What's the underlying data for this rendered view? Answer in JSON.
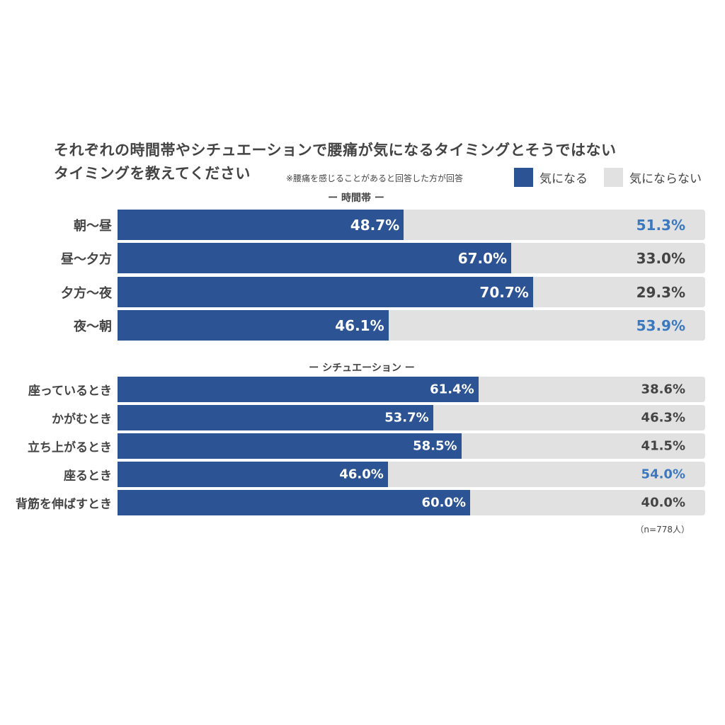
{
  "title_line1": "それぞれの時間帯やシチュエーションで腰痛が気になるタイミングとそうではない",
  "title_line2": "タイミングを教えてください",
  "note": "※腰痛を感じることがあると回答した方が回答",
  "legend": [
    {
      "label": "気になる",
      "color": "#2c5494"
    },
    {
      "label": "気にならない",
      "color": "#e1e1e1"
    }
  ],
  "colors": {
    "primary": "#2c5494",
    "rest": "#e1e1e1",
    "highlight_text": "#3a78c0",
    "normal_text": "#444444"
  },
  "sections": [
    {
      "title": "ー 時間帯 ー"
    },
    {
      "title": "ー シチュエーション ー"
    }
  ],
  "footnote": "（n=778人）",
  "chart_data": {
    "type": "bar",
    "orientation": "horizontal-stacked-100",
    "title": "それぞれの時間帯やシチュエーションで腰痛が気になるタイミングとそうではないタイミングを教えてください",
    "subtitle": "※腰痛を感じることがあると回答した方が回答",
    "legend_position": "top-right",
    "sample": "n=778人",
    "groups": [
      {
        "name": "時間帯",
        "categories": [
          "朝〜昼",
          "昼〜夕方",
          "夕方〜夜",
          "夜〜朝"
        ],
        "series": [
          {
            "name": "気になる",
            "values": [
              48.7,
              67.0,
              70.7,
              46.1
            ],
            "labels": [
              "48.7%",
              "67.0%",
              "70.7%",
              "46.1%"
            ]
          },
          {
            "name": "気にならない",
            "values": [
              51.3,
              33.0,
              29.3,
              53.9
            ],
            "labels": [
              "51.3%",
              "33.0%",
              "29.3%",
              "53.9%"
            ],
            "highlight": [
              true,
              false,
              false,
              true
            ]
          }
        ]
      },
      {
        "name": "シチュエーション",
        "categories": [
          "座っているとき",
          "かがむとき",
          "立ち上がるとき",
          "座るとき",
          "背筋を伸ばすとき"
        ],
        "series": [
          {
            "name": "気になる",
            "values": [
              61.4,
              53.7,
              58.5,
              46.0,
              60.0
            ],
            "labels": [
              "61.4%",
              "53.7%",
              "58.5%",
              "46.0%",
              "60.0%"
            ]
          },
          {
            "name": "気にならない",
            "values": [
              38.6,
              46.3,
              41.5,
              54.0,
              40.0
            ],
            "labels": [
              "38.6%",
              "46.3%",
              "41.5%",
              "54.0%",
              "40.0%"
            ],
            "highlight": [
              false,
              false,
              false,
              true,
              false
            ]
          }
        ]
      }
    ],
    "xlim": [
      0,
      100
    ],
    "grid": false
  }
}
